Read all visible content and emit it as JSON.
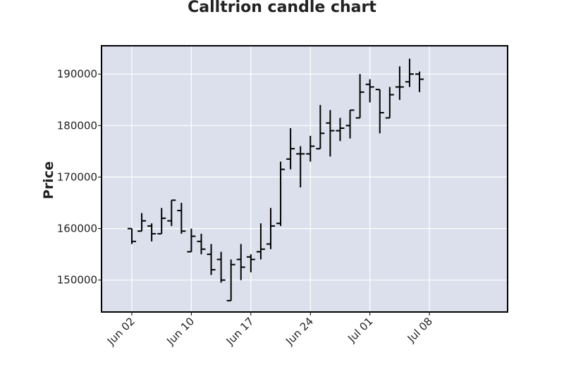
{
  "chart_data": {
    "type": "ohlc",
    "title": "Calltrion candle chart",
    "xlabel": "",
    "ylabel": "Price",
    "ylim": [
      143800,
      195500
    ],
    "y_ticks": [
      150000,
      160000,
      170000,
      180000,
      190000
    ],
    "y_tick_labels": [
      "150000",
      "160000",
      "170000",
      "180000",
      "190000"
    ],
    "x_ticks": [
      {
        "index": 0,
        "label": "Jun 02"
      },
      {
        "index": 6,
        "label": "Jun 10"
      },
      {
        "index": 12,
        "label": "Jun 17"
      },
      {
        "index": 18,
        "label": "Jun 24"
      },
      {
        "index": 24,
        "label": "Jul 01"
      },
      {
        "index": 30,
        "label": "Jul 08"
      }
    ],
    "grid": true,
    "legend": "none",
    "colors": {
      "plot_background": "#dce0ec",
      "grid": "#ffffff",
      "bars": "#000000",
      "frame": "#000000"
    },
    "candles": [
      {
        "date": "2024-05-31",
        "open": 160000,
        "high": 160000,
        "low": 157000,
        "close": 157500
      },
      {
        "date": "2024-06-03",
        "open": 159500,
        "high": 163000,
        "low": 159500,
        "close": 161500
      },
      {
        "date": "2024-06-04",
        "open": 160500,
        "high": 161000,
        "low": 157500,
        "close": 159000
      },
      {
        "date": "2024-06-05",
        "open": 159000,
        "high": 164000,
        "low": 159000,
        "close": 162000
      },
      {
        "date": "2024-06-06",
        "open": 161500,
        "high": 165500,
        "low": 160500,
        "close": 165500
      },
      {
        "date": "2024-06-07",
        "open": 163500,
        "high": 165000,
        "low": 159000,
        "close": 159500
      },
      {
        "date": "2024-06-10",
        "open": 155500,
        "high": 160000,
        "low": 155500,
        "close": 158500
      },
      {
        "date": "2024-06-11",
        "open": 157500,
        "high": 159000,
        "low": 155000,
        "close": 156000
      },
      {
        "date": "2024-06-12",
        "open": 155000,
        "high": 157000,
        "low": 151000,
        "close": 152000
      },
      {
        "date": "2024-06-13",
        "open": 154000,
        "high": 155500,
        "low": 149500,
        "close": 150000
      },
      {
        "date": "2024-06-14",
        "open": 146000,
        "high": 154000,
        "low": 146000,
        "close": 153000
      },
      {
        "date": "2024-06-17",
        "open": 154000,
        "high": 157000,
        "low": 150000,
        "close": 152500
      },
      {
        "date": "2024-06-18",
        "open": 154500,
        "high": 155000,
        "low": 151500,
        "close": 154000
      },
      {
        "date": "2024-06-19",
        "open": 155500,
        "high": 161000,
        "low": 154000,
        "close": 156000
      },
      {
        "date": "2024-06-20",
        "open": 157000,
        "high": 164000,
        "low": 156000,
        "close": 160500
      },
      {
        "date": "2024-06-21",
        "open": 161000,
        "high": 173000,
        "low": 160500,
        "close": 171500
      },
      {
        "date": "2024-06-24",
        "open": 173500,
        "high": 179500,
        "low": 171500,
        "close": 175500
      },
      {
        "date": "2024-06-25",
        "open": 174500,
        "high": 176000,
        "low": 168000,
        "close": 174500
      },
      {
        "date": "2024-06-26",
        "open": 174500,
        "high": 178000,
        "low": 173000,
        "close": 176000
      },
      {
        "date": "2024-06-27",
        "open": 175500,
        "high": 184000,
        "low": 175500,
        "close": 178500
      },
      {
        "date": "2024-06-28",
        "open": 180500,
        "high": 183000,
        "low": 174000,
        "close": 179000
      },
      {
        "date": "2024-07-01",
        "open": 179000,
        "high": 181500,
        "low": 177000,
        "close": 179500
      },
      {
        "date": "2024-07-02",
        "open": 180000,
        "high": 183000,
        "low": 177500,
        "close": 183000
      },
      {
        "date": "2024-07-03",
        "open": 181500,
        "high": 190000,
        "low": 181500,
        "close": 186500
      },
      {
        "date": "2024-07-04",
        "open": 188000,
        "high": 189000,
        "low": 184500,
        "close": 187500
      },
      {
        "date": "2024-07-05",
        "open": 187000,
        "high": 187000,
        "low": 178500,
        "close": 182500
      },
      {
        "date": "2024-07-08",
        "open": 181500,
        "high": 187500,
        "low": 181500,
        "close": 186000
      },
      {
        "date": "2024-07-09",
        "open": 187500,
        "high": 191500,
        "low": 185000,
        "close": 187500
      },
      {
        "date": "2024-07-10",
        "open": 188500,
        "high": 193000,
        "low": 187500,
        "close": 190000
      },
      {
        "date": "2024-07-11",
        "open": 190000,
        "high": 190500,
        "low": 186500,
        "close": 189000
      }
    ]
  }
}
